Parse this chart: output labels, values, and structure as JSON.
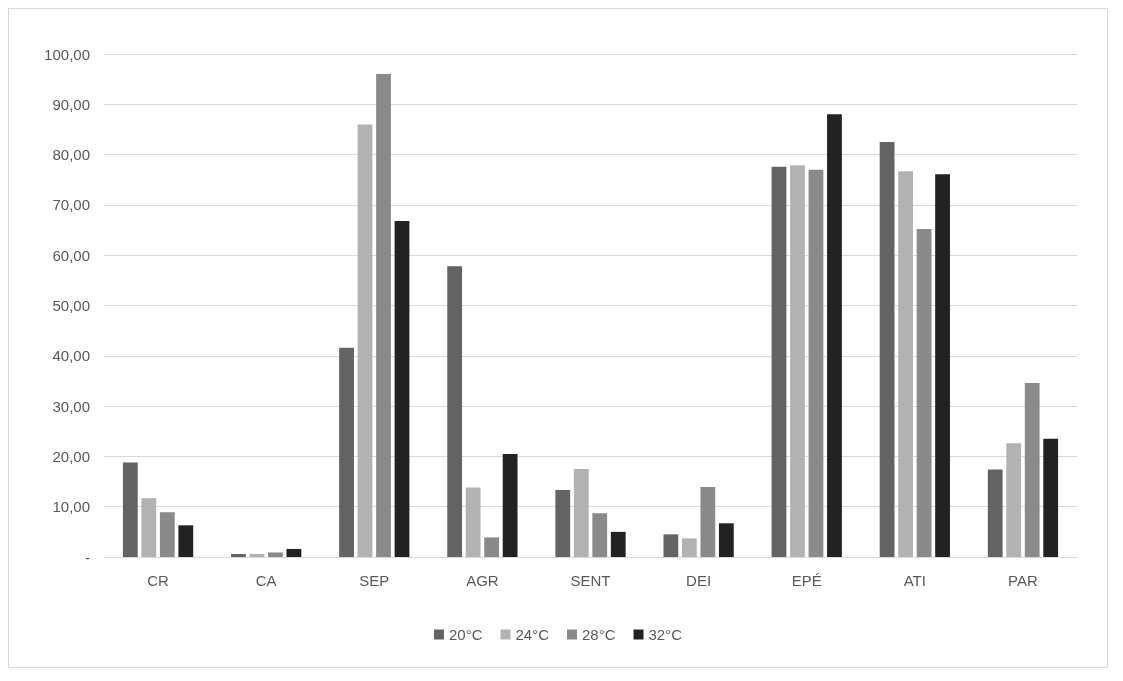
{
  "chart_data": {
    "type": "bar",
    "categories": [
      "CR",
      "CA",
      "SEP",
      "AGR",
      "SENT",
      "DEI",
      "EPÉ",
      "ATI",
      "PAR"
    ],
    "series": [
      {
        "name": "20°C",
        "color": "#636363",
        "values": [
          18.8,
          0.6,
          41.6,
          57.8,
          13.3,
          4.5,
          77.6,
          82.5,
          17.4
        ]
      },
      {
        "name": "24°C",
        "color": "#b2b2b2",
        "values": [
          11.7,
          0.6,
          86.0,
          13.8,
          17.5,
          3.7,
          77.9,
          76.7,
          22.6
        ]
      },
      {
        "name": "28°C",
        "color": "#8a8a8a",
        "values": [
          8.9,
          0.9,
          96.0,
          3.9,
          8.7,
          13.9,
          77.0,
          65.2,
          34.6
        ]
      },
      {
        "name": "32°C",
        "color": "#222222",
        "values": [
          6.3,
          1.6,
          66.8,
          20.5,
          5.0,
          6.7,
          88.0,
          76.1,
          23.5
        ]
      }
    ],
    "ylim": [
      0,
      100
    ],
    "yticks": [
      {
        "value": 0,
        "label": "-"
      },
      {
        "value": 10,
        "label": "10,00"
      },
      {
        "value": 20,
        "label": "20,00"
      },
      {
        "value": 30,
        "label": "30,00"
      },
      {
        "value": 40,
        "label": "40,00"
      },
      {
        "value": 50,
        "label": "50,00"
      },
      {
        "value": 60,
        "label": "60,00"
      },
      {
        "value": 70,
        "label": "70,00"
      },
      {
        "value": 80,
        "label": "80,00"
      },
      {
        "value": 90,
        "label": "90,00"
      },
      {
        "value": 100,
        "label": "100,00"
      }
    ],
    "grid": "y",
    "legend": "bottom"
  }
}
